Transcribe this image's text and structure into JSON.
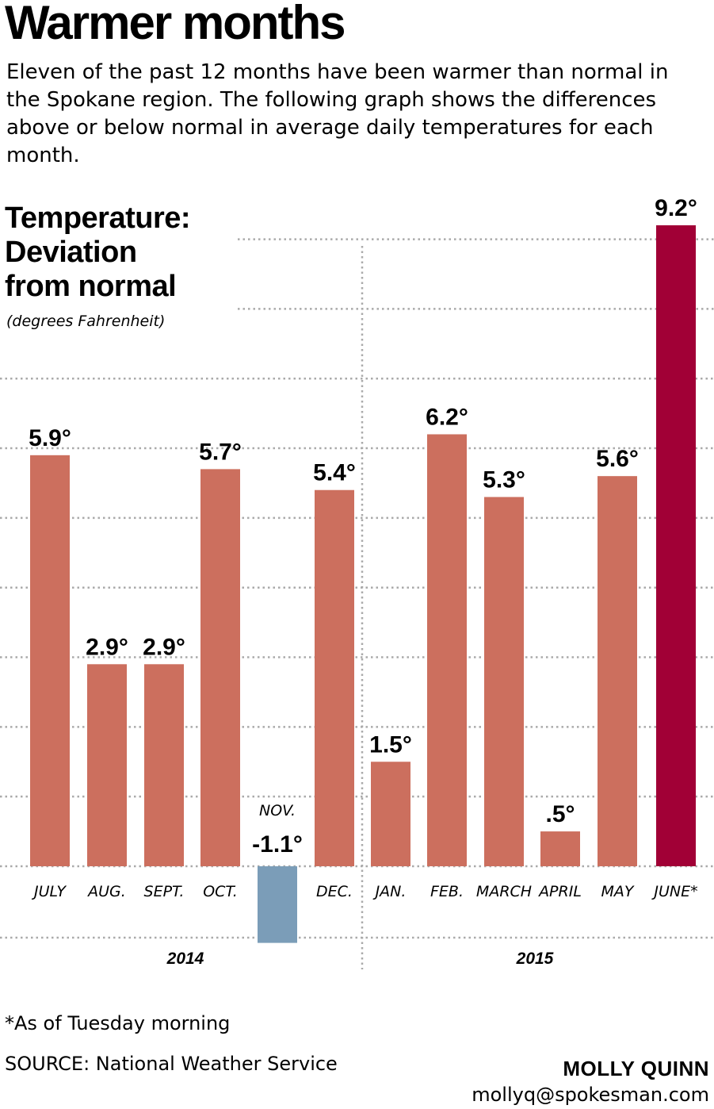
{
  "headline": "Warmer months",
  "intro": "Eleven of the past 12 months have been warmer than normal in the Spokane region. The following graph shows the differences above or below normal in average daily temperatures for each month.",
  "chart_title": [
    "Temperature:",
    "Deviation",
    "from normal"
  ],
  "chart_unit": "(degrees Fahrenheit)",
  "chart_data": {
    "type": "bar",
    "title": "Temperature: Deviation from normal",
    "ylabel": "(degrees Fahrenheit)",
    "ylim": [
      -1.1,
      9.2
    ],
    "categories": [
      "JULY",
      "AUG.",
      "SEPT.",
      "OCT.",
      "NOV.",
      "DEC.",
      "JAN.",
      "FEB.",
      "MARCH",
      "APRIL",
      "MAY",
      "JUNE*"
    ],
    "values": [
      5.9,
      2.9,
      2.9,
      5.7,
      -1.1,
      5.4,
      1.5,
      6.2,
      5.3,
      0.5,
      5.6,
      9.2
    ],
    "value_labels": [
      "5.9°",
      "2.9°",
      "2.9°",
      "5.7°",
      "-1.1°",
      "5.4°",
      "1.5°",
      "6.2°",
      "5.3°",
      ".5°",
      "5.6°",
      "9.2°"
    ],
    "year_groups": [
      {
        "label": "2014",
        "categories": [
          "JULY",
          "AUG.",
          "SEPT.",
          "OCT.",
          "NOV.",
          "DEC."
        ]
      },
      {
        "label": "2015",
        "categories": [
          "JAN.",
          "FEB.",
          "MARCH",
          "APRIL",
          "MAY",
          "JUNE*"
        ]
      }
    ],
    "grid": true,
    "colors": {
      "warm": "#cc6f5e",
      "cold": "#7b9db8",
      "highlight": "#a10036",
      "grid": "#aaaaaa"
    }
  },
  "footnote": "*As of Tuesday morning",
  "source": "SOURCE: National Weather Service",
  "credit": {
    "name": "MOLLY QUINN",
    "email": "mollyq@spokesman.com"
  }
}
